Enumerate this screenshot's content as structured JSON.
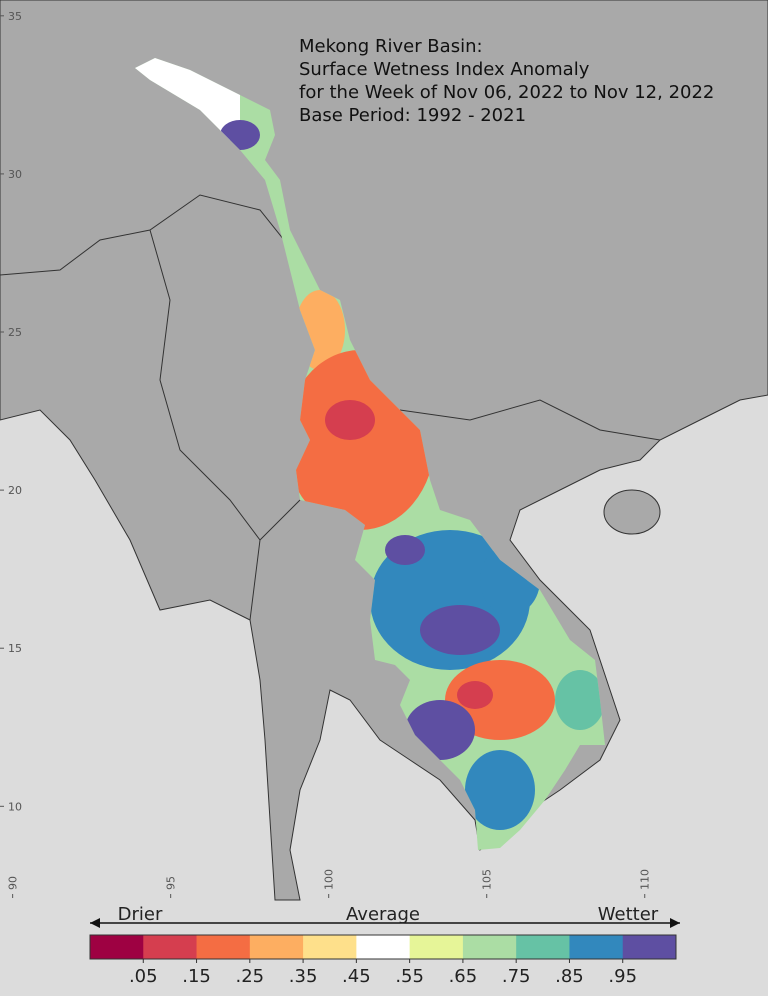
{
  "title": [
    "Mekong River Basin:",
    "Surface Wetness Index Anomaly",
    "for the Week of Nov 06, 2022 to Nov 12, 2022",
    "Base Period: 1992 - 2021"
  ],
  "map": {
    "lon_lim": [
      89.6,
      113.9
    ],
    "lat_lim": [
      7.1,
      35.5
    ],
    "lat_ticks": [
      35,
      30,
      25,
      20,
      15,
      10
    ],
    "lon_ticks": [
      90,
      95,
      100,
      105,
      110
    ]
  },
  "colorbar": {
    "left_label": "Drier",
    "center_label": "Average",
    "right_label": "Wetter",
    "colors": [
      "#9e0142",
      "#d53e4f",
      "#f46d43",
      "#fdae61",
      "#fee08b",
      "#ffffff",
      "#e6f598",
      "#abdda4",
      "#66c2a5",
      "#3288bd",
      "#5e4fa2"
    ],
    "ticks": [
      {
        "value": 0.05,
        "label": ".05"
      },
      {
        "value": 0.15,
        "label": ".15"
      },
      {
        "value": 0.25,
        "label": ".25"
      },
      {
        "value": 0.35,
        "label": ".35"
      },
      {
        "value": 0.45,
        "label": ".45"
      },
      {
        "value": 0.55,
        "label": ".55"
      },
      {
        "value": 0.65,
        "label": ".65"
      },
      {
        "value": 0.75,
        "label": ".75"
      },
      {
        "value": 0.85,
        "label": ".85"
      },
      {
        "value": 0.95,
        "label": ".95"
      }
    ]
  }
}
